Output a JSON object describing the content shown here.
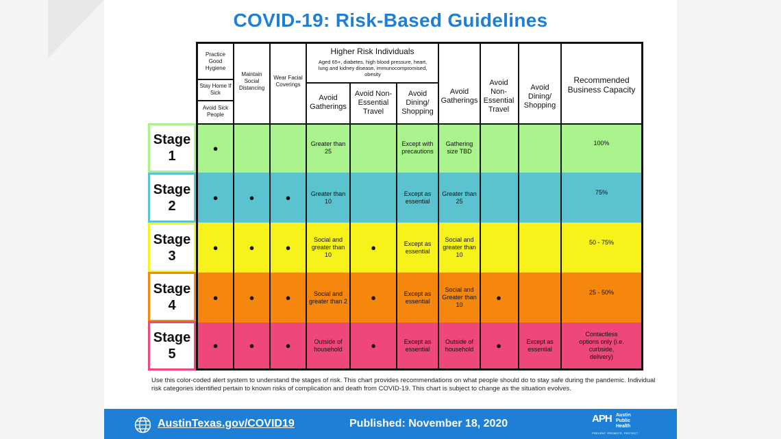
{
  "title": "COVID-19: Risk-Based Guidelines",
  "colors": {
    "title_blue": "#1e7fd6",
    "stage1": "#a9f28c",
    "stage2": "#5bc3cf",
    "stage3": "#f7f21a",
    "stage4": "#f5870e",
    "stage5": "#ee4779"
  },
  "headers": {
    "practice_hygiene": "Practice Good Hygiene",
    "stay_home": "Stay Home If Sick",
    "avoid_sick": "Avoid Sick People",
    "maintain_distancing": "Maintain Social Distancing",
    "wear_coverings": "Wear Facial Coverings",
    "higher_risk_title": "Higher Risk Individuals",
    "higher_risk_desc": "Aged 65+, diabetes, high blood pressure, heart, lung and kidney disease, immunocompromised, obesity",
    "hr_avoid_gatherings": "Avoid Gatherings",
    "hr_avoid_travel": "Avoid Non-Essential Travel",
    "hr_avoid_dining": "Avoid Dining/ Shopping",
    "avoid_gatherings": "Avoid Gatherings",
    "avoid_travel": "Avoid Non-Essential Travel",
    "avoid_dining": "Avoid Dining/ Shopping",
    "capacity": "Recommended Business Capacity"
  },
  "stages": [
    {
      "word": "Stage",
      "num": "1",
      "cells": [
        "●",
        "",
        "",
        "Greater than 25",
        "",
        "Except with precautions",
        "Gathering size TBD",
        "",
        "",
        "100%"
      ]
    },
    {
      "word": "Stage",
      "num": "2",
      "cells": [
        "●",
        "●",
        "●",
        "Greater than 10",
        "",
        "Except as essential",
        "Greater than 25",
        "",
        "",
        "75%"
      ]
    },
    {
      "word": "Stage",
      "num": "3",
      "cells": [
        "●",
        "●",
        "●",
        "Social and greater than 10",
        "●",
        "Except as essential",
        "Social and greater than 10",
        "",
        "",
        "50 - 75%"
      ]
    },
    {
      "word": "Stage",
      "num": "4",
      "cells": [
        "●",
        "●",
        "●",
        "Social and greater than 2",
        "●",
        "Except as essential",
        "Social and Greater than 10",
        "●",
        "",
        "25 - 50%"
      ]
    },
    {
      "word": "Stage",
      "num": "5",
      "cells": [
        "●",
        "●",
        "●",
        "Outside of household",
        "●",
        "Except as essential",
        "Outside of household",
        "●",
        "Except as essential",
        "Contactless options only (i.e. curbside, delivery)"
      ]
    }
  ],
  "note": "Use this color-coded alert system to understand the stages of risk. This chart provides recommendations on what people should do to stay safe during the pandemic. Individual risk categories identified pertain to known risks of complication and death from COVID-19. This chart is subject to change as the situation evolves.",
  "footer": {
    "site": "AustinTexas.gov/COVID19",
    "published": "Published: November 18, 2020",
    "logo_mark": "APH",
    "logo_line1": "Austin",
    "logo_line2": "Public",
    "logo_line3": "Health",
    "logo_tagline": "PREVENT. PROMOTE. PROTECT."
  }
}
